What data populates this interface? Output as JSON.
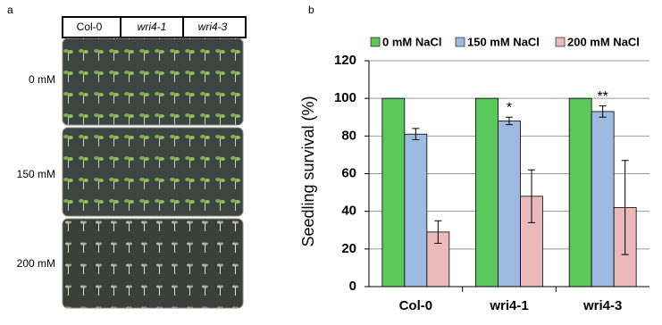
{
  "panel_a": {
    "label": "a",
    "columns": [
      "Col-0",
      "wri4-1",
      "wri4-3"
    ],
    "rows": [
      "0 mM",
      "150 mM",
      "200 mM"
    ]
  },
  "chart_data": {
    "type": "bar",
    "panel_label": "b",
    "y_label": "Seedling survival (%)",
    "categories": [
      "Col-0",
      "wri4-1",
      "wri4-3"
    ],
    "series": [
      {
        "name": "0 mM NaCl",
        "color": "#5bc85b",
        "values": [
          100,
          100,
          100
        ]
      },
      {
        "name": "150 mM NaCl",
        "color": "#9dbbe0",
        "values": [
          81,
          88,
          93
        ],
        "errors": [
          3,
          2,
          3
        ],
        "significance": [
          null,
          "*",
          "**"
        ]
      },
      {
        "name": "200 mM NaCl",
        "color": "#eab9b9",
        "values": [
          29,
          48,
          42
        ],
        "errors": [
          6,
          14,
          25
        ]
      }
    ],
    "ylim": [
      0,
      120
    ],
    "yticks": [
      0,
      20,
      40,
      60,
      80,
      100,
      120
    ],
    "grid": true
  }
}
